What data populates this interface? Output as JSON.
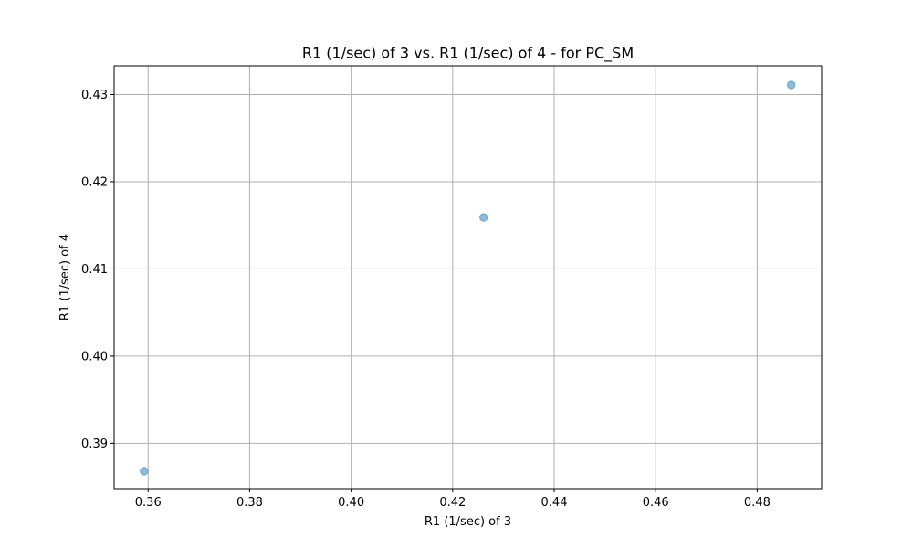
{
  "chart_data": {
    "type": "scatter",
    "title": "R1 (1/sec) of 3 vs. R1 (1/sec) of 4 - for PC_SM",
    "xlabel": "R1 (1/sec) of 3",
    "ylabel": "R1 (1/sec) of 4",
    "xlim": [
      0.3533,
      0.4927
    ],
    "ylim": [
      0.3848,
      0.4333
    ],
    "grid": true,
    "xticks": [
      0.36,
      0.38,
      0.4,
      0.42,
      0.44,
      0.46,
      0.48
    ],
    "xtick_labels": [
      "0.36",
      "0.38",
      "0.40",
      "0.42",
      "0.44",
      "0.46",
      "0.48"
    ],
    "yticks": [
      0.39,
      0.4,
      0.41,
      0.42,
      0.43
    ],
    "ytick_labels": [
      "0.39",
      "0.40",
      "0.41",
      "0.42",
      "0.43"
    ],
    "series": [
      {
        "color": "#1f77b4",
        "points": [
          {
            "x": 0.3592,
            "y": 0.3868
          },
          {
            "x": 0.4261,
            "y": 0.4159
          },
          {
            "x": 0.4867,
            "y": 0.4311
          }
        ]
      }
    ]
  }
}
